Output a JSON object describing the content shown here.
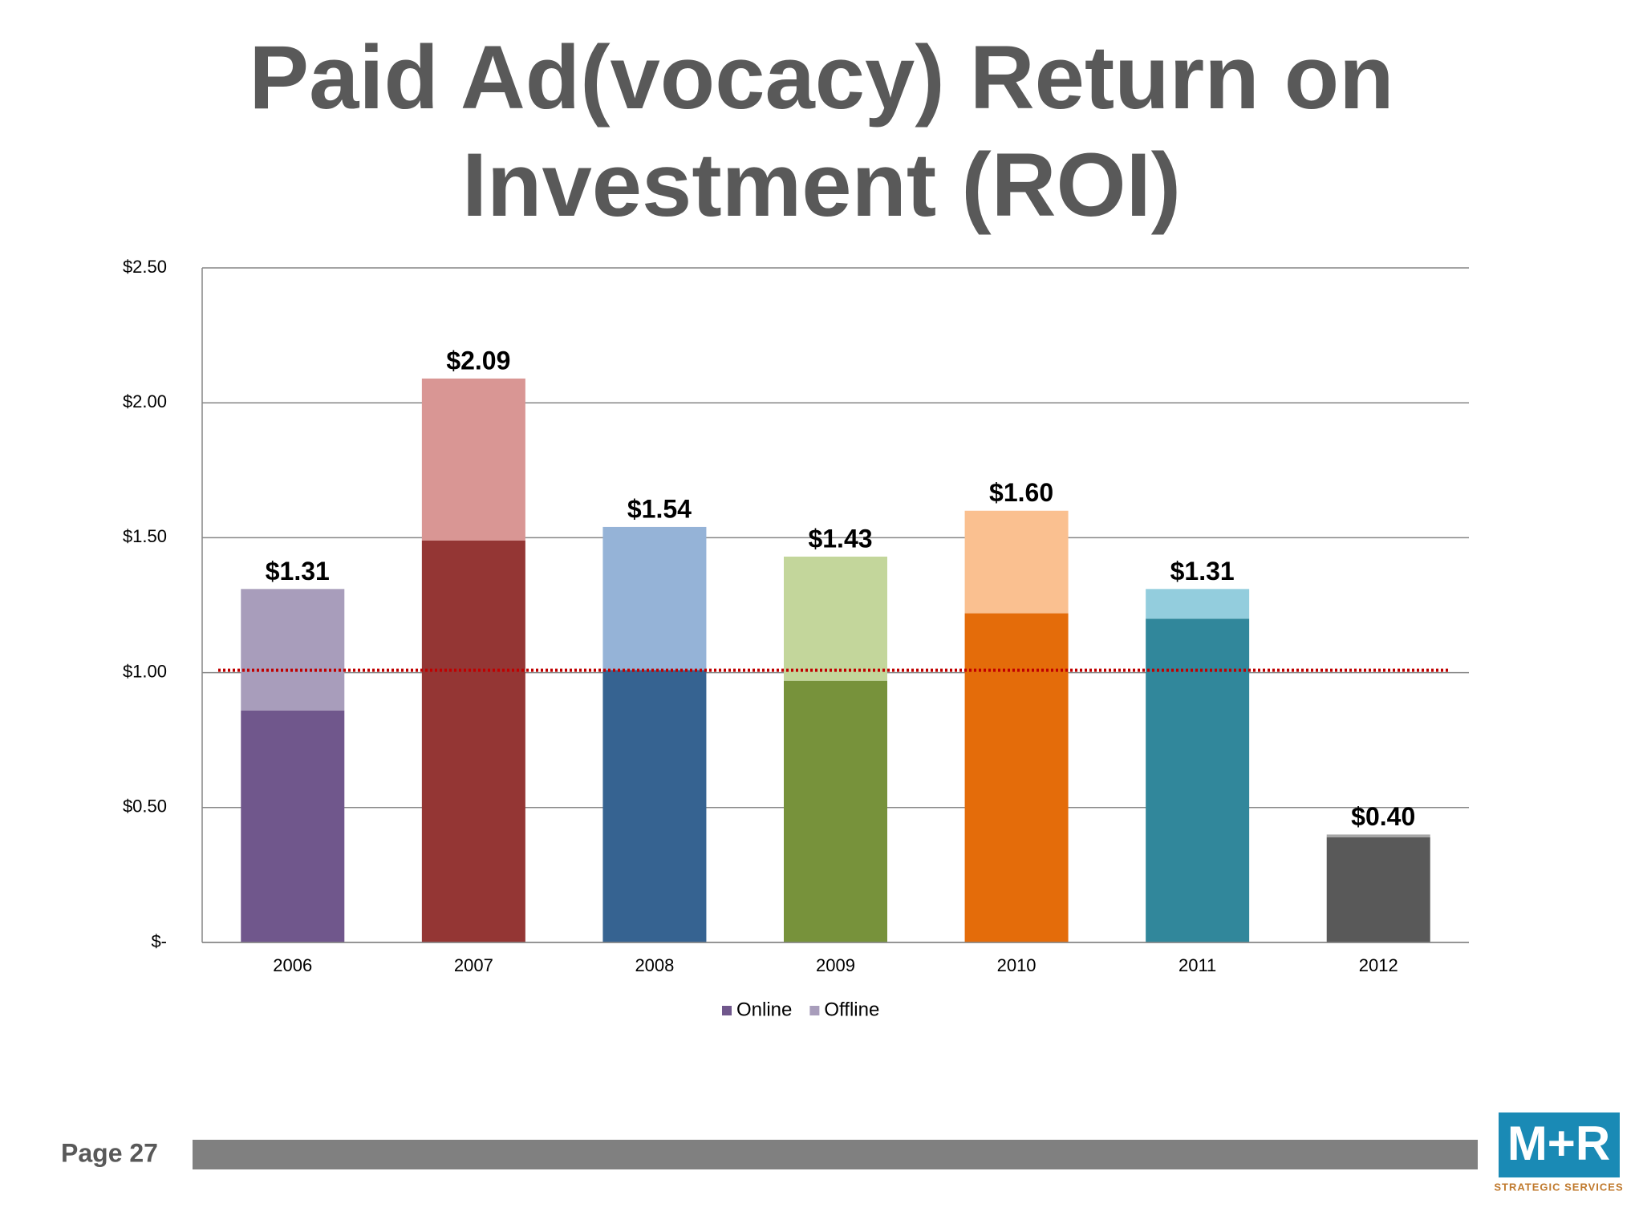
{
  "chart_data": {
    "type": "stacked_bar",
    "title": "Paid Ad(vocacy) Return on Investment (ROI)",
    "categories": [
      "2006",
      "2007",
      "2008",
      "2009",
      "2010",
      "2011",
      "2012"
    ],
    "series": [
      {
        "name": "Online",
        "color": "#70578c",
        "colors": [
          "#70578c",
          "#943634",
          "#366391",
          "#77923b",
          "#e46c0a",
          "#31879b",
          "#595959"
        ],
        "values": [
          0.86,
          1.49,
          1.01,
          0.97,
          1.22,
          1.2,
          0.39
        ]
      },
      {
        "name": "Offline",
        "color": "#a89dbb",
        "colors": [
          "#a89dbb",
          "#d99694",
          "#95b3d7",
          "#c3d69b",
          "#fac090",
          "#93cddd",
          "#a6a6a6"
        ],
        "values": [
          0.45,
          0.6,
          0.53,
          0.46,
          0.38,
          0.11,
          0.01
        ]
      }
    ],
    "totals": [
      1.31,
      2.09,
      1.54,
      1.43,
      1.6,
      1.31,
      0.4
    ],
    "total_labels": [
      "$1.31",
      "$2.09",
      "$1.54",
      "$1.43",
      "$1.60",
      "$1.31",
      "$0.40"
    ],
    "reference_line": {
      "value": 1,
      "color": "#c00000"
    },
    "ylim": [
      0,
      2.5
    ],
    "yticks": [
      {
        "value": 0,
        "label": "$-"
      },
      {
        "value": 0.5,
        "label": "$0.50"
      },
      {
        "value": 1,
        "label": "$1.00"
      },
      {
        "value": 1.5,
        "label": "$1.50"
      },
      {
        "value": 2,
        "label": "$2.00"
      },
      {
        "value": 2.5,
        "label": "$2.50"
      }
    ],
    "grid": true,
    "legend": "bottom"
  },
  "footer": {
    "page": "Page 27",
    "logo": "M+R",
    "logo_subtitle": "STRATEGIC SERVICES"
  }
}
